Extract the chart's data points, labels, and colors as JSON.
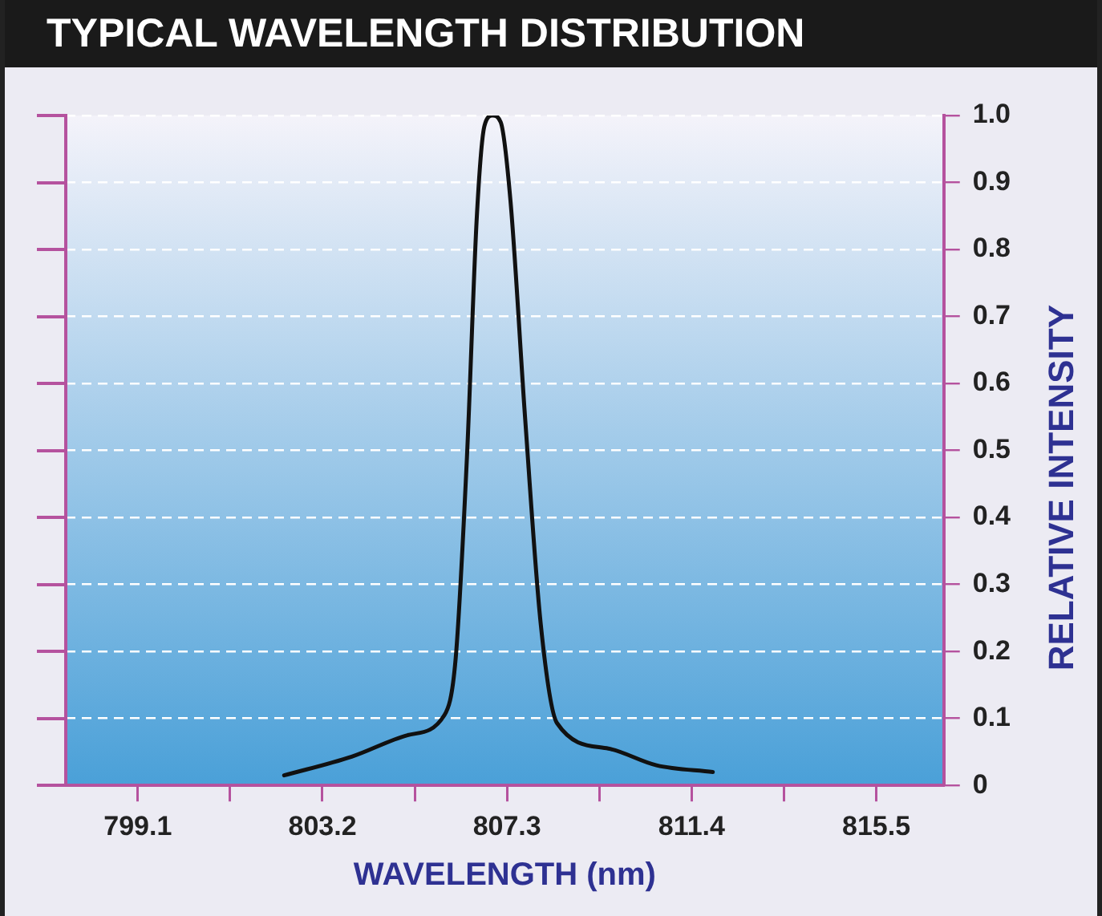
{
  "chart_data": {
    "type": "line",
    "title": "TYPICAL WAVELENGTH DISTRIBUTION",
    "xlabel": "WAVELENGTH (nm)",
    "ylabel": "RELATIVE INTENSITY",
    "series": [
      {
        "color": "#111111",
        "x": [
          802.35,
          803.85,
          805.09,
          805.91,
          806.16,
          806.41,
          806.63,
          806.8,
          806.98,
          807.16,
          807.38,
          807.7,
          808.05,
          808.41,
          809.55,
          810.62,
          811.87
        ],
        "values": [
          0.015,
          0.043,
          0.075,
          0.105,
          0.19,
          0.49,
          0.85,
          0.985,
          1.0,
          0.99,
          0.87,
          0.55,
          0.24,
          0.093,
          0.055,
          0.03,
          0.02
        ]
      }
    ],
    "xlim": [
      797.5,
      817.0
    ],
    "xticks": [
      {
        "value": 799.1,
        "label": "799.1"
      },
      {
        "value": 801.15,
        "label": null
      },
      {
        "value": 803.2,
        "label": "803.2"
      },
      {
        "value": 805.25,
        "label": null
      },
      {
        "value": 807.3,
        "label": "807.3"
      },
      {
        "value": 809.35,
        "label": null
      },
      {
        "value": 811.4,
        "label": "811.4"
      },
      {
        "value": 813.45,
        "label": null
      },
      {
        "value": 815.5,
        "label": "815.5"
      }
    ],
    "ylim": [
      0,
      1
    ],
    "yticks": [
      0,
      {
        "value": 0.1,
        "label": "0.1"
      },
      {
        "value": 0.2,
        "label": "0.2"
      },
      {
        "value": 0.3,
        "label": "0.3"
      },
      {
        "value": 0.4,
        "label": "0.4"
      },
      {
        "value": 0.5,
        "label": "0.5"
      },
      {
        "value": 0.6,
        "label": "0.6"
      },
      {
        "value": 0.7,
        "label": "0.7"
      },
      {
        "value": 0.8,
        "label": "0.8"
      },
      {
        "value": 0.9,
        "label": "0.9"
      },
      {
        "value": 1,
        "label": "1.0"
      }
    ],
    "grid": "y",
    "line_style": "solid"
  }
}
